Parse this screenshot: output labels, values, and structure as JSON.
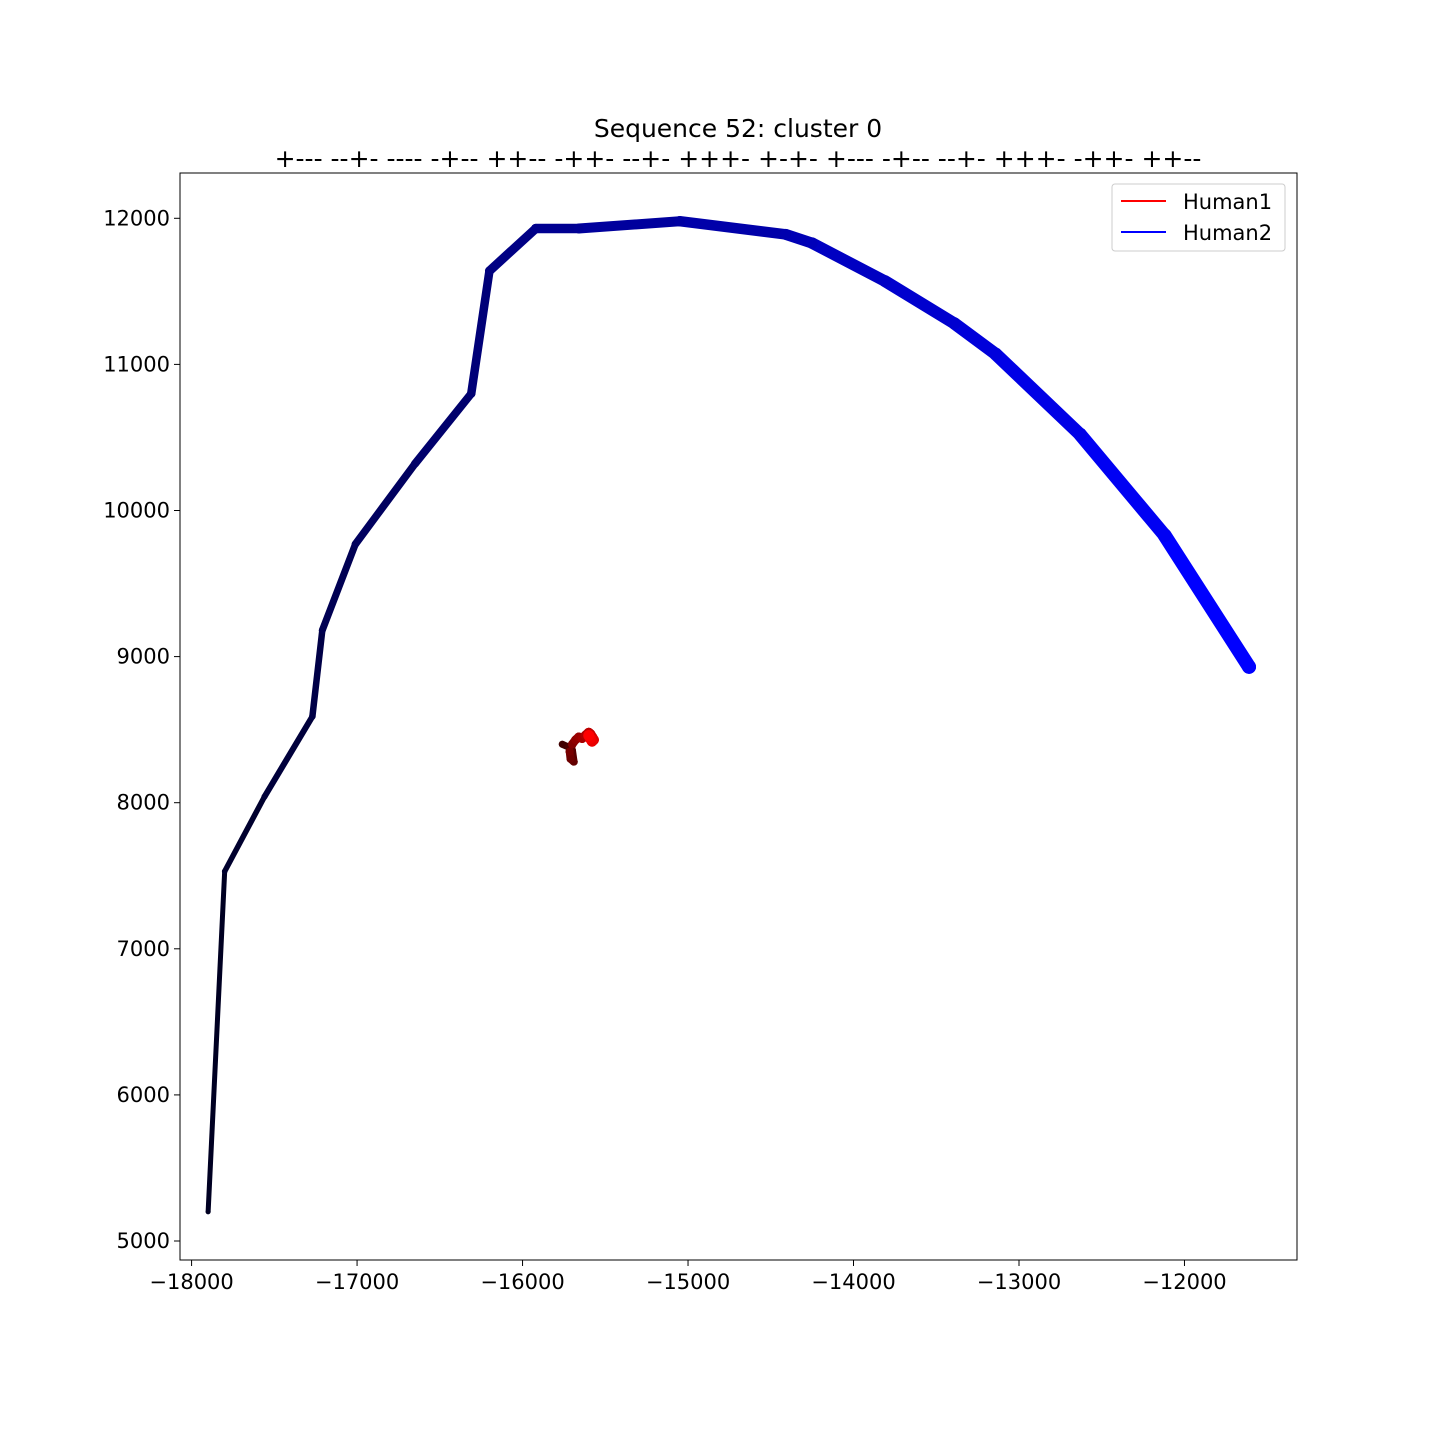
{
  "chart_data": {
    "type": "line",
    "title": "Sequence 52: cluster 0",
    "subtitle": "+--- --+- ---- -+-- ++-- -++- --+- +++- +-+- +--- -+-- --+- +++- -++- ++--",
    "xlabel": "",
    "ylabel": "",
    "xlim": [
      -18070,
      -11320
    ],
    "ylim": [
      4870,
      12310
    ],
    "xticks": [
      -18000,
      -17000,
      -16000,
      -15000,
      -14000,
      -13000,
      -12000
    ],
    "xtick_labels": [
      "−18000",
      "−17000",
      "−16000",
      "−15000",
      "−14000",
      "−13000",
      "−12000"
    ],
    "yticks": [
      5000,
      6000,
      7000,
      8000,
      9000,
      10000,
      11000,
      12000
    ],
    "ytick_labels": [
      "5000",
      "6000",
      "7000",
      "8000",
      "9000",
      "10000",
      "11000",
      "12000"
    ],
    "grid": false,
    "legend_position": "top-right",
    "series": [
      {
        "name": "Human1",
        "color": "#ff0000",
        "start_color": "#400000",
        "x": [
          -15760,
          -15720,
          -15700,
          -15690,
          -15710,
          -15715,
          -15700,
          -15680,
          -15660,
          -15640,
          -15620,
          -15600,
          -15590,
          -15580,
          -15570,
          -15580,
          -15590,
          -15600
        ],
        "y": [
          8400,
          8380,
          8360,
          8280,
          8300,
          8350,
          8400,
          8430,
          8450,
          8440,
          8460,
          8480,
          8470,
          8450,
          8430,
          8420,
          8440,
          8460
        ]
      },
      {
        "name": "Human2",
        "color": "#0000ff",
        "start_color": "#000022",
        "x": [
          -17900,
          -17800,
          -17560,
          -17270,
          -17210,
          -17010,
          -16650,
          -16310,
          -16200,
          -15920,
          -15660,
          -15050,
          -14410,
          -14250,
          -13810,
          -13390,
          -13140,
          -12630,
          -12120,
          -11610
        ],
        "y": [
          5200,
          7530,
          8040,
          8590,
          9180,
          9770,
          10320,
          10800,
          11640,
          11930,
          11930,
          11980,
          11890,
          11830,
          11570,
          11280,
          11070,
          10520,
          9830,
          8930
        ]
      }
    ]
  }
}
